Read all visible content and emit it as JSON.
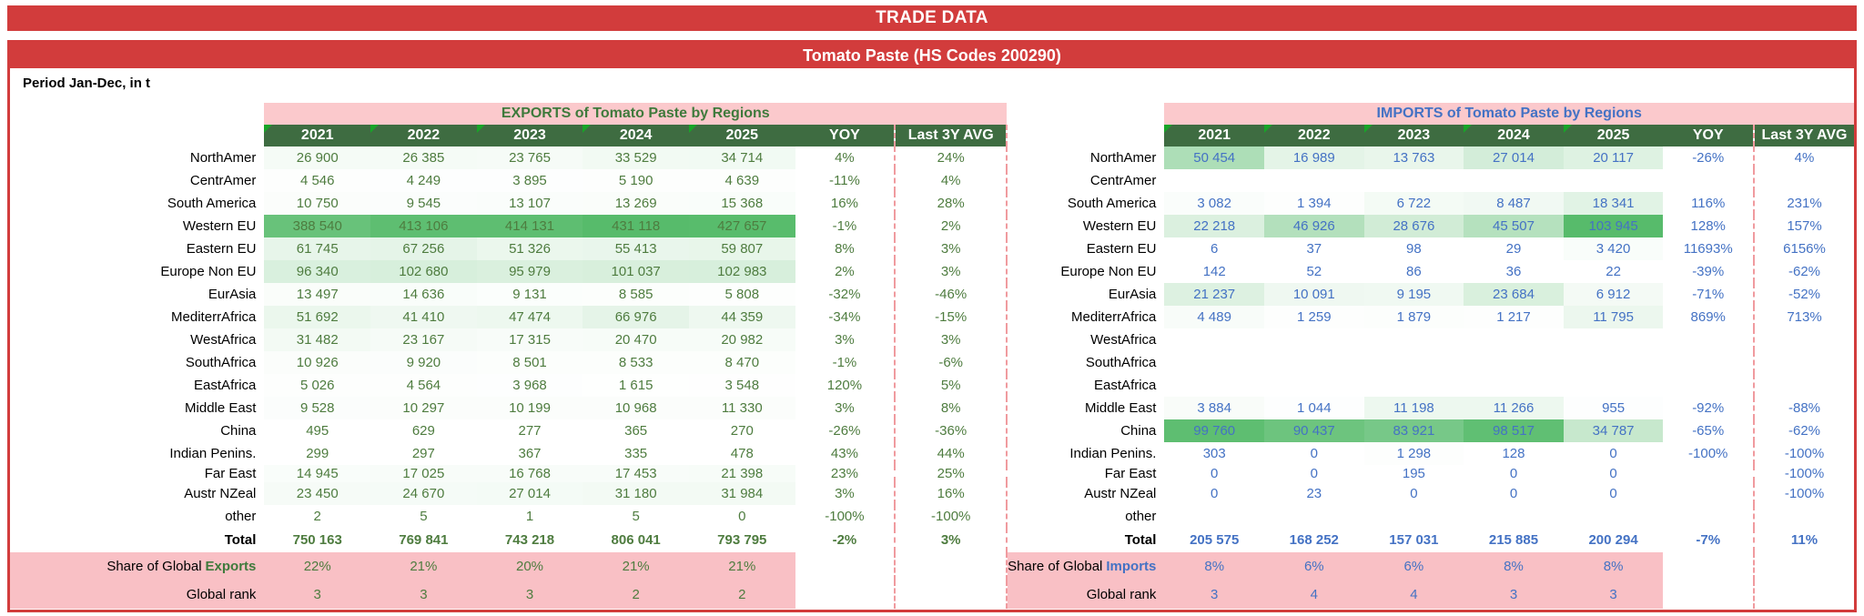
{
  "banner": {
    "trade_data": "TRADE DATA",
    "product_title": "Tomato Paste (HS Codes 200290)"
  },
  "period_label": "Period Jan-Dec, in t",
  "columns": {
    "years": [
      "2021",
      "2022",
      "2023",
      "2024",
      "2025"
    ],
    "yoy": "YOY",
    "last3y": "Last 3Y AVG"
  },
  "colors": {
    "banner_red": "#D23C3C",
    "header_green": "#3E6C41",
    "corner_marker_green": "#18A428",
    "pink_band": "#FBC9CC",
    "pink_footer": "#F9C0C5",
    "exports_text": "#4E7C3F",
    "imports_text": "#4472C4",
    "scale_green_max": "#57BB6B"
  },
  "exports": {
    "title": "EXPORTS of Tomato Paste by Regions",
    "max_value": 431118,
    "total_label": "Total",
    "share_label_prefix": "Share of Global",
    "share_label_word": "Exports",
    "rank_label": "Global rank",
    "rows": [
      {
        "region": "NorthAmer",
        "values": [
          26900,
          26385,
          23765,
          33529,
          34714
        ],
        "yoy": "4%",
        "avg": "24%"
      },
      {
        "region": "CentrAmer",
        "values": [
          4546,
          4249,
          3895,
          5190,
          4639
        ],
        "yoy": "-11%",
        "avg": "4%"
      },
      {
        "region": "South America",
        "values": [
          10750,
          9545,
          13107,
          13269,
          15368
        ],
        "yoy": "16%",
        "avg": "28%"
      },
      {
        "region": "Western EU",
        "values": [
          388540,
          413106,
          414131,
          431118,
          427657
        ],
        "yoy": "-1%",
        "avg": "2%"
      },
      {
        "region": "Eastern EU",
        "values": [
          61745,
          67256,
          51326,
          55413,
          59807
        ],
        "yoy": "8%",
        "avg": "3%"
      },
      {
        "region": "Europe Non EU",
        "values": [
          96340,
          102680,
          95979,
          101037,
          102983
        ],
        "yoy": "2%",
        "avg": "3%"
      },
      {
        "region": "EurAsia",
        "values": [
          13497,
          14636,
          9131,
          8585,
          5808
        ],
        "yoy": "-32%",
        "avg": "-46%"
      },
      {
        "region": "MediterrAfrica",
        "values": [
          51692,
          41410,
          47474,
          66976,
          44359
        ],
        "yoy": "-34%",
        "avg": "-15%"
      },
      {
        "region": "WestAfrica",
        "values": [
          31482,
          23167,
          17315,
          20470,
          20982
        ],
        "yoy": "3%",
        "avg": "3%"
      },
      {
        "region": "SouthAfrica",
        "values": [
          10926,
          9920,
          8501,
          8533,
          8470
        ],
        "yoy": "-1%",
        "avg": "-6%"
      },
      {
        "region": "EastAfrica",
        "values": [
          5026,
          4564,
          3968,
          1615,
          3548
        ],
        "yoy": "120%",
        "avg": "5%"
      },
      {
        "region": "Middle East",
        "values": [
          9528,
          10297,
          10199,
          10968,
          11330
        ],
        "yoy": "3%",
        "avg": "8%"
      },
      {
        "region": "China",
        "values": [
          495,
          629,
          277,
          365,
          270
        ],
        "yoy": "-26%",
        "avg": "-36%"
      },
      {
        "region": "Indian Penins.",
        "values": [
          299,
          297,
          367,
          335,
          478
        ],
        "yoy": "43%",
        "avg": "44%"
      },
      {
        "region": "Far East",
        "values": [
          14945,
          17025,
          16768,
          17453,
          21398
        ],
        "yoy": "23%",
        "avg": "25%",
        "compact": true
      },
      {
        "region": "Austr NZeal",
        "values": [
          23450,
          24670,
          27014,
          31180,
          31984
        ],
        "yoy": "3%",
        "avg": "16%"
      },
      {
        "region": "other",
        "values": [
          2,
          5,
          1,
          5,
          0
        ],
        "yoy": "-100%",
        "avg": "-100%"
      }
    ],
    "total": {
      "values": [
        750163,
        769841,
        743218,
        806041,
        793795
      ],
      "yoy": "-2%",
      "avg": "3%"
    },
    "share": [
      "22%",
      "21%",
      "20%",
      "21%",
      "21%"
    ],
    "rank": [
      "3",
      "3",
      "3",
      "2",
      "2"
    ]
  },
  "imports": {
    "title": "IMPORTS of Tomato Paste by Regions",
    "max_value": 103945,
    "total_label": "Total",
    "share_label_prefix": "Share of Global",
    "share_label_word": "Imports",
    "rank_label": "Global rank",
    "rows": [
      {
        "region": "NorthAmer",
        "values": [
          50454,
          16989,
          13763,
          27014,
          20117
        ],
        "yoy": "-26%",
        "avg": "4%"
      },
      {
        "region": "CentrAmer",
        "values": [
          null,
          null,
          null,
          null,
          null
        ],
        "yoy": "",
        "avg": ""
      },
      {
        "region": "South America",
        "values": [
          3082,
          1394,
          6722,
          8487,
          18341
        ],
        "yoy": "116%",
        "avg": "231%"
      },
      {
        "region": "Western EU",
        "values": [
          22218,
          46926,
          28676,
          45507,
          103945
        ],
        "yoy": "128%",
        "avg": "157%"
      },
      {
        "region": "Eastern EU",
        "values": [
          6,
          37,
          98,
          29,
          3420
        ],
        "yoy": "11693%",
        "avg": "6156%"
      },
      {
        "region": "Europe Non EU",
        "values": [
          142,
          52,
          86,
          36,
          22
        ],
        "yoy": "-39%",
        "avg": "-62%"
      },
      {
        "region": "EurAsia",
        "values": [
          21237,
          10091,
          9195,
          23684,
          6912
        ],
        "yoy": "-71%",
        "avg": "-52%"
      },
      {
        "region": "MediterrAfrica",
        "values": [
          4489,
          1259,
          1879,
          1217,
          11795
        ],
        "yoy": "869%",
        "avg": "713%"
      },
      {
        "region": "WestAfrica",
        "values": [
          null,
          null,
          null,
          null,
          null
        ],
        "yoy": "",
        "avg": ""
      },
      {
        "region": "SouthAfrica",
        "values": [
          null,
          null,
          null,
          null,
          null
        ],
        "yoy": "",
        "avg": ""
      },
      {
        "region": "EastAfrica",
        "values": [
          null,
          null,
          null,
          null,
          null
        ],
        "yoy": "",
        "avg": ""
      },
      {
        "region": "Middle East",
        "values": [
          3884,
          1044,
          11198,
          11266,
          955
        ],
        "yoy": "-92%",
        "avg": "-88%"
      },
      {
        "region": "China",
        "values": [
          99760,
          90437,
          83921,
          98517,
          34787
        ],
        "yoy": "-65%",
        "avg": "-62%"
      },
      {
        "region": "Indian Penins.",
        "values": [
          303,
          0,
          1298,
          128,
          0
        ],
        "yoy": "-100%",
        "avg": "-100%"
      },
      {
        "region": "Far East",
        "values": [
          0,
          0,
          195,
          0,
          0
        ],
        "yoy": "",
        "avg": "-100%",
        "compact": true
      },
      {
        "region": "Austr NZeal",
        "values": [
          0,
          23,
          0,
          0,
          0
        ],
        "yoy": "",
        "avg": "-100%"
      },
      {
        "region": "other",
        "values": [
          null,
          null,
          null,
          null,
          null
        ],
        "yoy": "",
        "avg": ""
      }
    ],
    "total": {
      "values": [
        205575,
        168252,
        157031,
        215885,
        200294
      ],
      "yoy": "-7%",
      "avg": "11%"
    },
    "share": [
      "8%",
      "6%",
      "6%",
      "8%",
      "8%"
    ],
    "rank": [
      "3",
      "4",
      "4",
      "3",
      "3"
    ]
  }
}
